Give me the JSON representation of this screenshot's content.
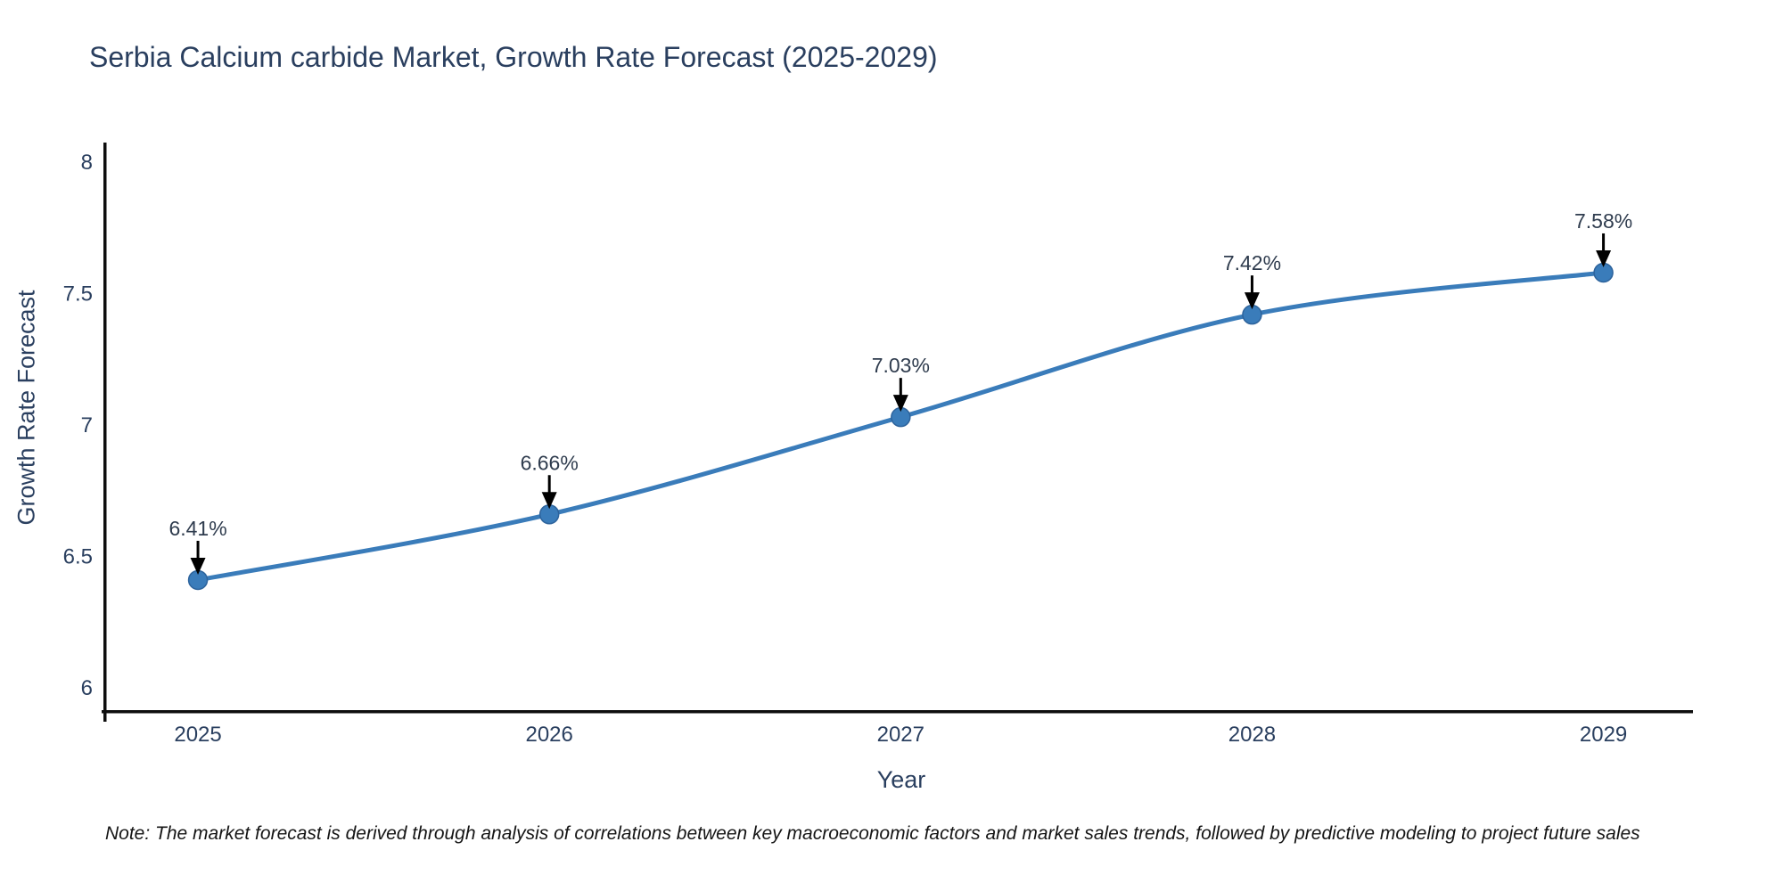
{
  "page": {
    "background": "#ffffff"
  },
  "chart_data": {
    "type": "line",
    "title": "Serbia Calcium carbide Market, Growth Rate Forecast (2025-2029)",
    "xlabel": "Year",
    "ylabel": "Growth Rate Forecast",
    "categories": [
      2025,
      2026,
      2027,
      2028,
      2029
    ],
    "series": [
      {
        "name": "Growth Rate Forecast",
        "values": [
          6.41,
          6.66,
          7.03,
          7.42,
          7.58
        ]
      }
    ],
    "point_labels": [
      "6.41%",
      "6.66%",
      "7.03%",
      "7.42%",
      "7.58%"
    ],
    "xtick_labels": [
      "2025",
      "2026",
      "2027",
      "2028",
      "2029"
    ],
    "ytick_values": [
      6,
      6.5,
      7,
      7.5,
      8
    ],
    "ytick_labels": [
      "6",
      "6.5",
      "7",
      "7.5",
      "8"
    ],
    "xlim": [
      2024.736,
      2029.27
    ],
    "ylim": [
      5.908,
      8.075
    ],
    "grid": false,
    "legend_position": "none",
    "line_shape": "spline",
    "colors": {
      "line": "#3a7cba",
      "marker_fill": "#3a7cba",
      "marker_edge": "#2d639c",
      "axis_line": "#0e0e0e",
      "title_text": "#2a3f5f",
      "tick_text": "#2a3f5f",
      "annotation_text": "#2f3c4e",
      "annotation_arrow": "#000000"
    },
    "note": "Note: The market forecast is derived through analysis of correlations between key macroeconomic factors and market sales trends, followed by predictive modeling to project future sales"
  }
}
